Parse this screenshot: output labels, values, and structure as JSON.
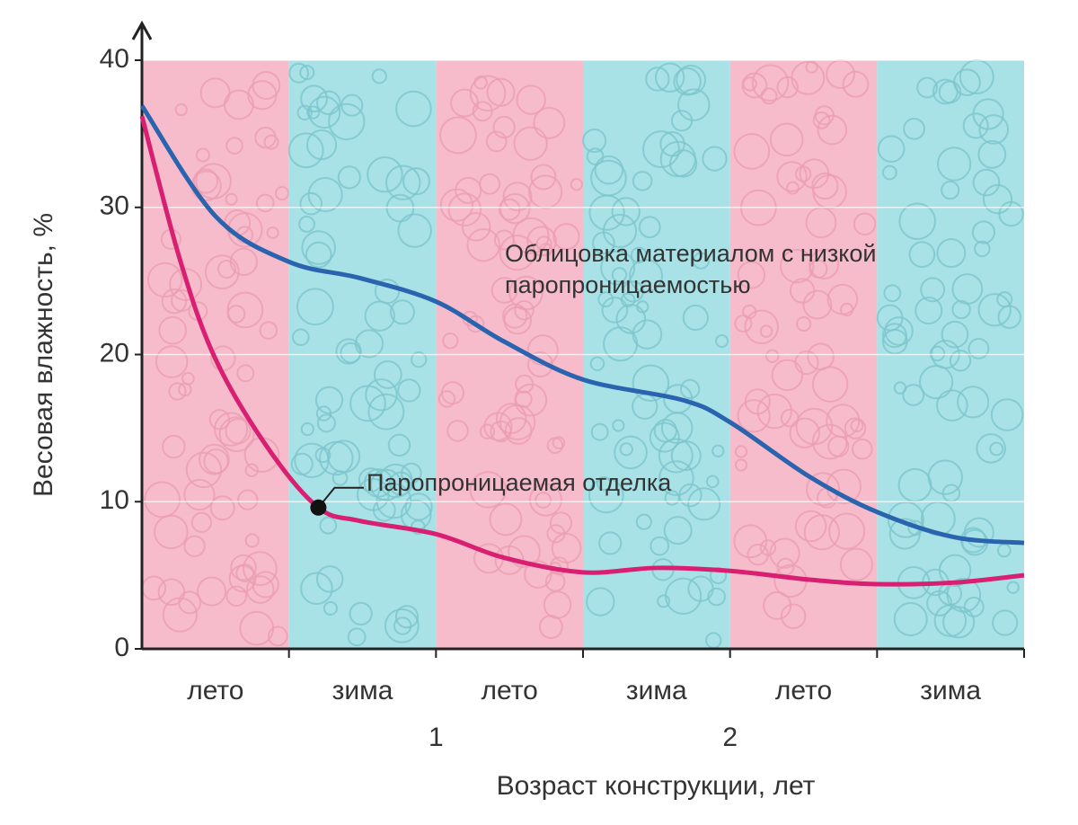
{
  "chart_data": {
    "type": "line",
    "y_label": "Весовая влажность, %",
    "x_label": "Возраст конструкции, лет",
    "seasons": [
      "лето",
      "зима",
      "лето",
      "зима",
      "лето",
      "зима"
    ],
    "season_colors": [
      "#f7bccb",
      "#a8e2e6"
    ],
    "xlim": [
      0,
      3
    ],
    "xticks": [
      1,
      2
    ],
    "ylim": [
      0,
      40
    ],
    "yticks": [
      0,
      10,
      20,
      30,
      40
    ],
    "grid": true,
    "series": [
      {
        "name": "Облицовка материалом с низкой паропроницаемостью",
        "color": "#2a64ae",
        "x": [
          0,
          0.25,
          0.5,
          0.74,
          1.0,
          1.23,
          1.5,
          1.84,
          2.0,
          2.27,
          2.5,
          2.76,
          3.0
        ],
        "values": [
          36.9,
          29.4,
          26.3,
          25.2,
          23.6,
          20.9,
          18.3,
          16.9,
          15.4,
          11.7,
          9.3,
          7.6,
          7.2
        ]
      },
      {
        "name": "Паропроницаемая отделка",
        "color": "#d81f72",
        "x": [
          0,
          0.13,
          0.25,
          0.43,
          0.6,
          0.74,
          1.0,
          1.23,
          1.5,
          1.75,
          2.0,
          2.27,
          2.5,
          2.76,
          3.0
        ],
        "values": [
          36.2,
          26.4,
          19.7,
          13.6,
          9.6,
          8.7,
          7.8,
          6.2,
          5.2,
          5.5,
          5.3,
          4.7,
          4.4,
          4.5,
          5.0
        ]
      }
    ]
  }
}
